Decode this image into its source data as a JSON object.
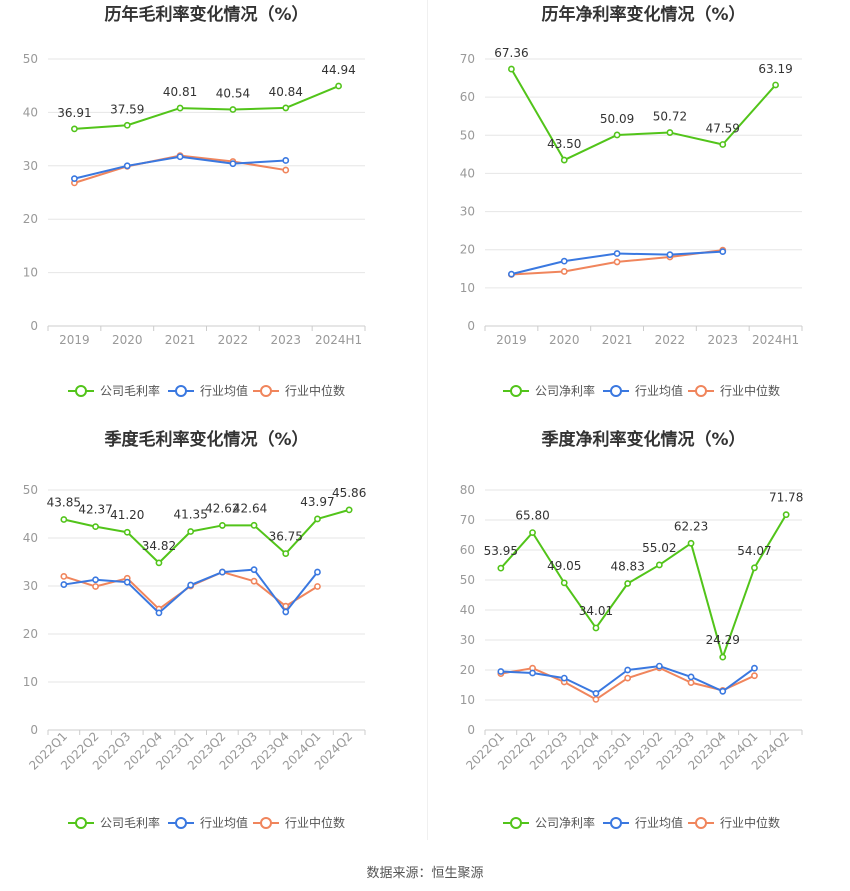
{
  "colors": {
    "company": "#52c41a",
    "industry_avg": "#3a78e0",
    "industry_median": "#f0855c",
    "grid": "#e6e6e6",
    "axis_text": "#999999",
    "label_text": "#333333"
  },
  "footer": "数据来源：恒生聚源",
  "chart_data": [
    {
      "type": "line",
      "title": "历年毛利率变化情况（%）",
      "categories": [
        "2019",
        "2020",
        "2021",
        "2022",
        "2023",
        "2024H1"
      ],
      "ylim": [
        0,
        50
      ],
      "yticks": [
        0,
        10,
        20,
        30,
        40,
        50
      ],
      "grid": true,
      "legend_position": "bottom",
      "series": [
        {
          "name": "公司毛利率",
          "values": [
            36.91,
            37.59,
            40.81,
            40.54,
            40.84,
            44.94
          ],
          "labels": [
            "36.91",
            "37.59",
            "40.81",
            "40.54",
            "40.84",
            "44.94"
          ]
        },
        {
          "name": "行业均值",
          "values": [
            27.6,
            30.0,
            31.7,
            30.4,
            31.0,
            null
          ]
        },
        {
          "name": "行业中位数",
          "values": [
            26.8,
            29.9,
            31.9,
            30.8,
            29.2,
            null
          ]
        }
      ]
    },
    {
      "type": "line",
      "title": "历年净利率变化情况（%）",
      "categories": [
        "2019",
        "2020",
        "2021",
        "2022",
        "2023",
        "2024H1"
      ],
      "ylim": [
        0,
        70
      ],
      "yticks": [
        0,
        10,
        20,
        30,
        40,
        50,
        60,
        70
      ],
      "grid": true,
      "legend_position": "bottom",
      "series": [
        {
          "name": "公司净利率",
          "values": [
            67.36,
            43.5,
            50.09,
            50.72,
            47.59,
            63.19
          ],
          "labels": [
            "67.36",
            "43.50",
            "50.09",
            "50.72",
            "47.59",
            "63.19"
          ]
        },
        {
          "name": "行业均值",
          "values": [
            13.6,
            17.0,
            19.0,
            18.7,
            19.5,
            null
          ]
        },
        {
          "name": "行业中位数",
          "values": [
            13.5,
            14.3,
            16.8,
            18.1,
            19.9,
            null
          ]
        }
      ]
    },
    {
      "type": "line",
      "title": "季度毛利率变化情况（%）",
      "categories": [
        "2022Q1",
        "2022Q2",
        "2022Q3",
        "2022Q4",
        "2023Q1",
        "2023Q2",
        "2023Q3",
        "2023Q4",
        "2024Q1",
        "2024Q2"
      ],
      "ylim": [
        0,
        50
      ],
      "yticks": [
        0,
        10,
        20,
        30,
        40,
        50
      ],
      "grid": true,
      "legend_position": "bottom",
      "series": [
        {
          "name": "公司毛利率",
          "values": [
            43.85,
            42.37,
            41.2,
            34.82,
            41.35,
            42.62,
            42.64,
            36.75,
            43.97,
            45.86
          ],
          "labels": [
            "43.85",
            "42.37",
            "41.20",
            "34.82",
            "41.35",
            "42.62",
            "42.64",
            "36.75",
            "43.97",
            "45.86"
          ]
        },
        {
          "name": "行业均值",
          "values": [
            30.3,
            31.3,
            30.8,
            24.4,
            30.2,
            32.9,
            33.4,
            24.6,
            32.9,
            null
          ]
        },
        {
          "name": "行业中位数",
          "values": [
            32.0,
            29.9,
            31.6,
            25.2,
            30.0,
            32.9,
            31.0,
            25.8,
            29.9,
            null
          ]
        }
      ]
    },
    {
      "type": "line",
      "title": "季度净利率变化情况（%）",
      "categories": [
        "2022Q1",
        "2022Q2",
        "2022Q3",
        "2022Q4",
        "2023Q1",
        "2023Q2",
        "2023Q3",
        "2023Q4",
        "2024Q1",
        "2024Q2"
      ],
      "ylim": [
        0,
        80
      ],
      "yticks": [
        0,
        10,
        20,
        30,
        40,
        50,
        60,
        70,
        80
      ],
      "grid": true,
      "legend_position": "bottom",
      "series": [
        {
          "name": "公司净利率",
          "values": [
            53.95,
            65.8,
            49.05,
            34.01,
            48.83,
            55.02,
            62.23,
            24.29,
            54.07,
            71.78
          ],
          "labels": [
            "53.95",
            "65.80",
            "49.05",
            "34.01",
            "48.83",
            "55.02",
            "62.23",
            "24.29",
            "54.07",
            "71.78"
          ]
        },
        {
          "name": "行业均值",
          "values": [
            19.5,
            19.0,
            17.3,
            12.2,
            20.0,
            21.3,
            17.7,
            12.9,
            20.6,
            null
          ]
        },
        {
          "name": "行业中位数",
          "values": [
            18.8,
            20.6,
            16.0,
            10.2,
            17.3,
            20.7,
            15.8,
            13.2,
            18.1,
            null
          ]
        }
      ]
    }
  ]
}
